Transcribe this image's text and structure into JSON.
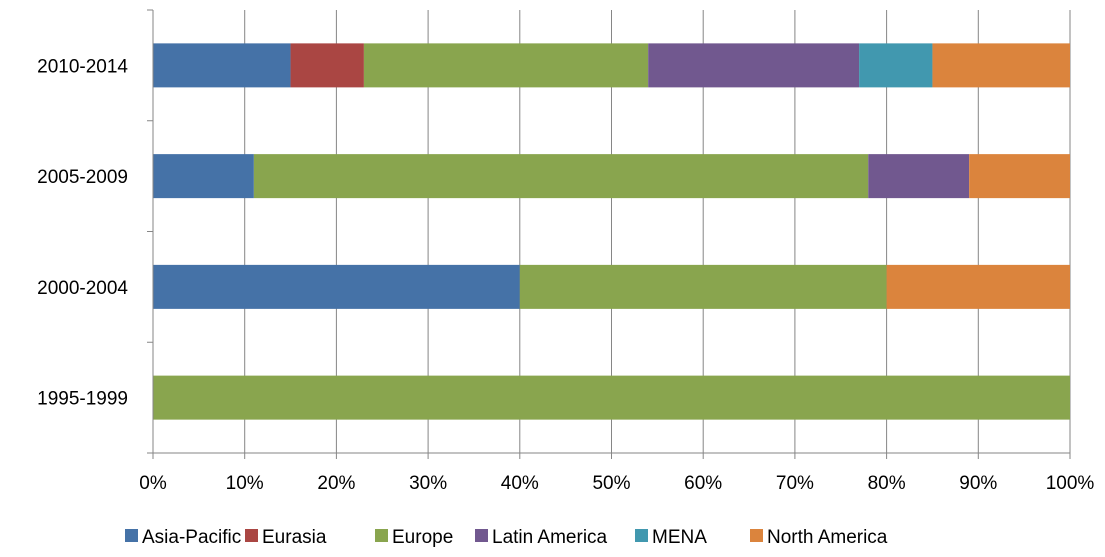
{
  "chart_data": {
    "type": "bar",
    "orientation": "horizontal",
    "stacked": "percent",
    "categories": [
      "1995-1999",
      "2000-2004",
      "2005-2009",
      "2010-2014"
    ],
    "series": [
      {
        "name": "Asia-Pacific",
        "color": "#4572A7",
        "values": [
          0,
          40,
          11,
          15
        ]
      },
      {
        "name": "Eurasia",
        "color": "#AA4643",
        "values": [
          0,
          0,
          0,
          8
        ]
      },
      {
        "name": "Europe",
        "color": "#89A54E",
        "values": [
          100,
          40,
          67,
          31
        ]
      },
      {
        "name": "Latin America",
        "color": "#71588F",
        "values": [
          0,
          0,
          11,
          23
        ]
      },
      {
        "name": "MENA",
        "color": "#4198AF",
        "values": [
          0,
          0,
          0,
          8
        ]
      },
      {
        "name": "North America",
        "color": "#DB843D",
        "values": [
          0,
          20,
          11,
          15
        ]
      }
    ],
    "xlim": [
      0,
      100
    ],
    "x_ticks": [
      "0%",
      "10%",
      "20%",
      "30%",
      "40%",
      "50%",
      "60%",
      "70%",
      "80%",
      "90%",
      "100%"
    ],
    "grid": "vertical",
    "legend": "bottom"
  }
}
